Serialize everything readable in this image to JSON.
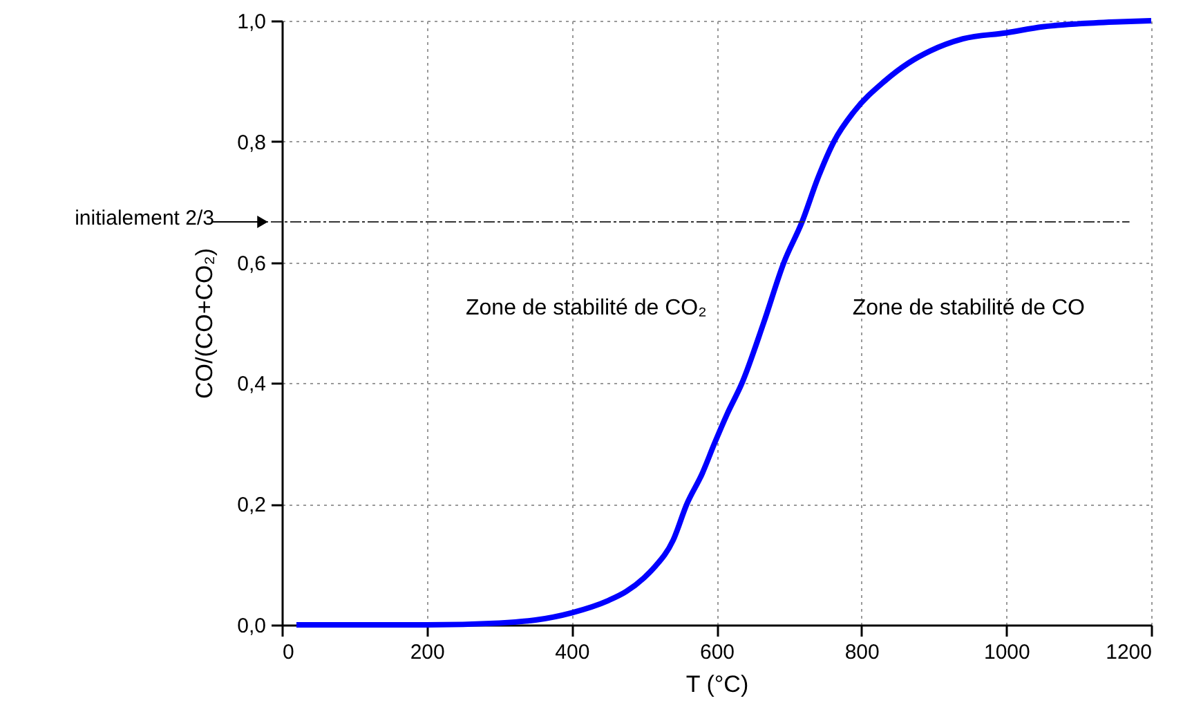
{
  "chart_data": {
    "type": "line",
    "xlabel": "T (°C)",
    "ylabel": "CO/(CO+CO₂)",
    "x": [
      20,
      100,
      200,
      300,
      350,
      400,
      450,
      475,
      500,
      514,
      540,
      559,
      580,
      597,
      615,
      635,
      665,
      693,
      718,
      740,
      762,
      790,
      832,
      865,
      895,
      940,
      1000,
      1050,
      1100,
      1150,
      1200
    ],
    "series": [
      {
        "color": "#0000ff",
        "values": [
          0,
          0,
          0,
          0.003,
          0.008,
          0.02,
          0.04,
          0.055,
          0.078,
          0.095,
          0.14,
          0.2,
          0.25,
          0.3,
          0.35,
          0.4,
          0.5,
          0.6,
          0.667,
          0.74,
          0.8,
          0.85,
          0.9,
          0.93,
          0.95,
          0.97,
          0.98,
          0.99,
          0.995,
          0.998,
          1.0
        ]
      }
    ],
    "xlim": [
      0,
      1200
    ],
    "xticks": [
      0,
      200,
      400,
      600,
      800,
      1000,
      1200
    ],
    "ylim": [
      0,
      1
    ],
    "yticks": [
      {
        "value": 0,
        "label": "0,0"
      },
      {
        "value": 0.2,
        "label": "0,2"
      },
      {
        "value": 0.4,
        "label": "0,4"
      },
      {
        "value": 0.6,
        "label": "0,6"
      },
      {
        "value": 0.8,
        "label": "0,8"
      },
      {
        "value": 1,
        "label": "1,0"
      }
    ],
    "grid": true,
    "marker": "none",
    "line_style": "solid",
    "ref_lines": [
      {
        "axis": "y",
        "value": 0.667,
        "label": "initialement 2/3",
        "color": "#333333",
        "line_style": "dashed"
      }
    ],
    "annotations": [
      "Zone de stabilité de CO₂",
      "Zone de stabilité de CO"
    ]
  }
}
